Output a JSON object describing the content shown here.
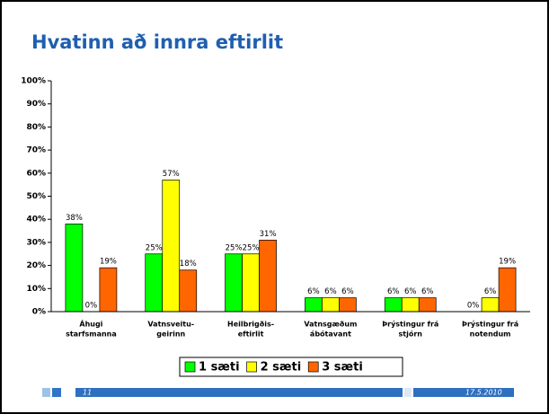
{
  "chart_data": {
    "type": "bar",
    "title": "Hvatinn að innra eftirlit",
    "categories": [
      [
        "Áhugi",
        "starfsmanna"
      ],
      [
        "Vatnsveitu-",
        "geirinn"
      ],
      [
        "Heilbrigðis-",
        "eftirlit"
      ],
      [
        "Vatnsgæðum",
        "ábótavant"
      ],
      [
        "Þrýstingur frá",
        "stjórn"
      ],
      [
        "Þrýstingur frá",
        "notendum"
      ]
    ],
    "series": [
      {
        "name": "1 sæti",
        "color": "#00ff00",
        "values": [
          38,
          25,
          25,
          6,
          6,
          0
        ],
        "value_labels": [
          "38%",
          "25%",
          "25%",
          "6%",
          "6%",
          "0%"
        ]
      },
      {
        "name": "2 sæti",
        "color": "#ffff00",
        "values": [
          0,
          57,
          25,
          6,
          6,
          6
        ],
        "value_labels": [
          "0%",
          "57%",
          "25%",
          "6%",
          "6%",
          "6%"
        ]
      },
      {
        "name": "3 sæti",
        "color": "#ff6600",
        "values": [
          19,
          18,
          31,
          6,
          6,
          19
        ],
        "value_labels": [
          "19%",
          "18%",
          "31%",
          "6%",
          "6%",
          "19%"
        ]
      }
    ],
    "ylim": [
      0,
      100
    ],
    "yticks": [
      {
        "value": 0,
        "label": "0%"
      },
      {
        "value": 10,
        "label": "10%"
      },
      {
        "value": 20,
        "label": "20%"
      },
      {
        "value": 30,
        "label": "30%"
      },
      {
        "value": 40,
        "label": "40%"
      },
      {
        "value": 50,
        "label": "50%"
      },
      {
        "value": 60,
        "label": "60%"
      },
      {
        "value": 70,
        "label": "70%"
      },
      {
        "value": 80,
        "label": "80%"
      },
      {
        "value": 90,
        "label": "90%"
      },
      {
        "value": 100,
        "label": "100%"
      }
    ],
    "legend": "bottom"
  },
  "footer": {
    "page": "11",
    "date": "17.5.2010"
  }
}
